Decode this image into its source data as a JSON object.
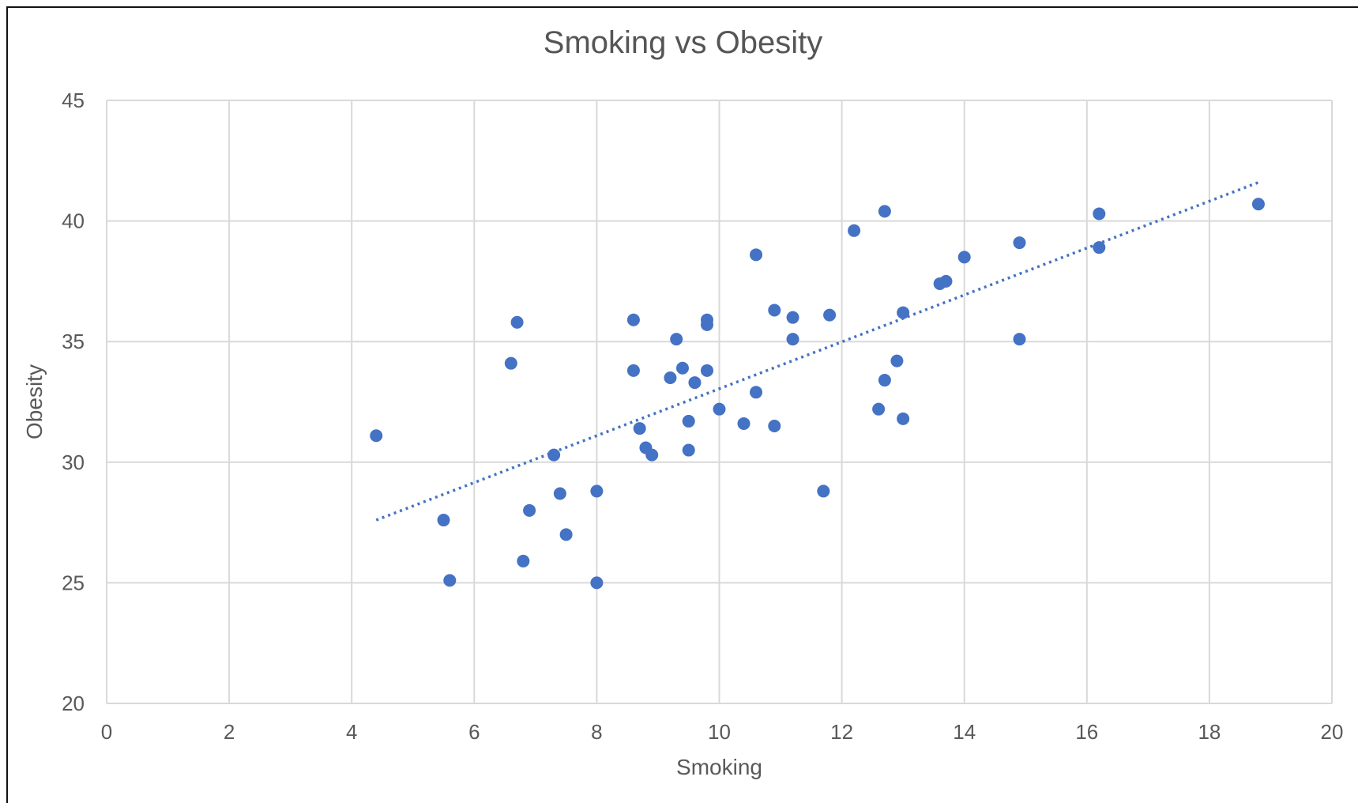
{
  "chart_data": {
    "type": "scatter",
    "title": "Smoking vs Obesity",
    "xlabel": "Smoking",
    "ylabel": "Obesity",
    "xlim": [
      0,
      20
    ],
    "ylim": [
      20,
      45
    ],
    "x_ticks": [
      0,
      2,
      4,
      6,
      8,
      10,
      12,
      14,
      16,
      18,
      20
    ],
    "y_ticks": [
      20,
      25,
      30,
      35,
      40,
      45
    ],
    "grid": true,
    "legend": "none",
    "marker_color": "#4472C4",
    "gridline_color": "#D9D9D9",
    "series": [
      {
        "points": [
          [
            4.4,
            31.1
          ],
          [
            5.5,
            27.6
          ],
          [
            5.6,
            25.1
          ],
          [
            6.6,
            34.1
          ],
          [
            6.7,
            35.8
          ],
          [
            6.8,
            25.9
          ],
          [
            6.9,
            28.0
          ],
          [
            7.3,
            30.3
          ],
          [
            7.4,
            28.7
          ],
          [
            7.5,
            27.0
          ],
          [
            8.0,
            28.8
          ],
          [
            8.0,
            25.0
          ],
          [
            8.6,
            35.9
          ],
          [
            8.6,
            33.8
          ],
          [
            8.7,
            31.4
          ],
          [
            8.8,
            30.6
          ],
          [
            8.9,
            30.3
          ],
          [
            9.2,
            33.5
          ],
          [
            9.3,
            35.1
          ],
          [
            9.4,
            33.9
          ],
          [
            9.5,
            31.7
          ],
          [
            9.5,
            30.5
          ],
          [
            9.6,
            33.3
          ],
          [
            9.8,
            35.9
          ],
          [
            9.8,
            35.7
          ],
          [
            9.8,
            33.8
          ],
          [
            10.0,
            32.2
          ],
          [
            10.4,
            31.6
          ],
          [
            10.6,
            38.6
          ],
          [
            10.6,
            32.9
          ],
          [
            10.9,
            36.3
          ],
          [
            10.9,
            31.5
          ],
          [
            11.2,
            36.0
          ],
          [
            11.2,
            35.1
          ],
          [
            11.7,
            28.8
          ],
          [
            11.8,
            36.1
          ],
          [
            12.2,
            39.6
          ],
          [
            12.6,
            32.2
          ],
          [
            12.7,
            40.4
          ],
          [
            12.7,
            33.4
          ],
          [
            12.9,
            34.2
          ],
          [
            13.0,
            36.2
          ],
          [
            13.0,
            31.8
          ],
          [
            13.6,
            37.4
          ],
          [
            13.7,
            37.5
          ],
          [
            14.0,
            38.5
          ],
          [
            14.9,
            39.1
          ],
          [
            14.9,
            35.1
          ],
          [
            16.2,
            40.3
          ],
          [
            16.2,
            38.9
          ],
          [
            18.8,
            40.7
          ]
        ]
      }
    ],
    "trendline": {
      "style": "dotted",
      "x": [
        4.4,
        18.8
      ],
      "y": [
        27.6,
        41.6
      ]
    }
  }
}
